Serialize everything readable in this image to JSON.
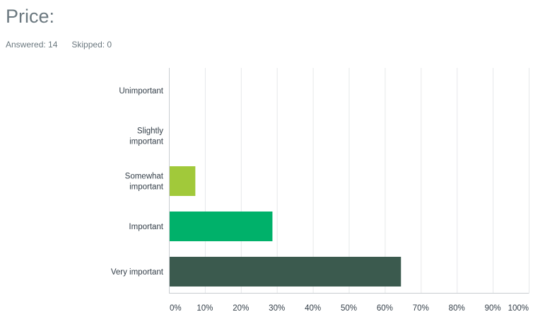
{
  "question": {
    "title": "Price:",
    "answered_label": "Answered: 14",
    "skipped_label": "Skipped: 0"
  },
  "chart_data": {
    "type": "bar",
    "orientation": "horizontal",
    "categories": [
      [
        "Unimportant"
      ],
      [
        "Slightly",
        "important"
      ],
      [
        "Somewhat",
        "important"
      ],
      [
        "Important"
      ],
      [
        "Very important"
      ]
    ],
    "values": [
      0,
      0,
      7.14,
      28.57,
      64.29
    ],
    "colors": [
      "#5f8f2f",
      "#a1c93a",
      "#a1c93a",
      "#00b16a",
      "#3b5a4e"
    ],
    "xlim": [
      0,
      100
    ],
    "x_ticks": [
      "0%",
      "10%",
      "20%",
      "30%",
      "40%",
      "50%",
      "60%",
      "70%",
      "80%",
      "90%",
      "100%"
    ],
    "grid": true,
    "gridline_color": "#e6e8ea",
    "axis_color": "#c8ccd0",
    "title": "",
    "xlabel": "",
    "ylabel": ""
  }
}
